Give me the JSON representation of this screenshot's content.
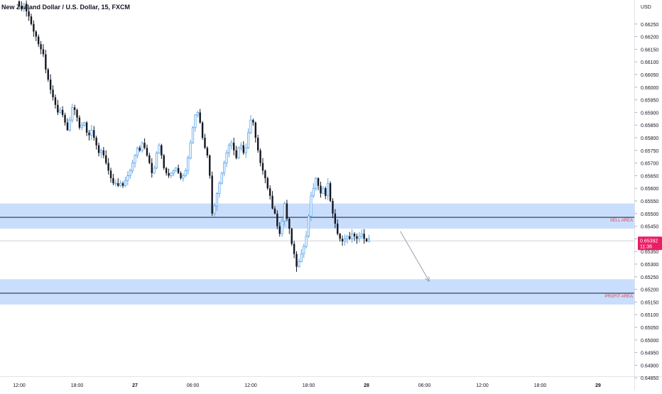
{
  "chart_data": {
    "type": "candlestick",
    "title": "New Zealand Dollar / U.S. Dollar, 15, FXCM",
    "currency": "USD",
    "ylim": [
      0.6482,
      0.6634
    ],
    "y_ticks": [
      0.6625,
      0.662,
      0.6615,
      0.661,
      0.6605,
      0.66,
      0.6595,
      0.659,
      0.6585,
      0.658,
      0.6575,
      0.657,
      0.6565,
      0.656,
      0.6555,
      0.655,
      0.6545,
      0.654,
      0.6535,
      0.653,
      0.6525,
      0.652,
      0.6515,
      0.651,
      0.6505,
      0.65,
      0.6495,
      0.649,
      0.6485
    ],
    "y_tick_labels": [
      "0.66250",
      "0.66200",
      "0.66150",
      "0.66100",
      "0.66050",
      "0.66000",
      "0.65950",
      "0.65900",
      "0.65850",
      "0.65800",
      "0.65750",
      "0.65700",
      "0.65650",
      "0.65600",
      "0.65550",
      "0.65500",
      "0.65450",
      "0.65400",
      "0.65350",
      "0.65300",
      "0.65250",
      "0.65200",
      "0.65150",
      "0.65100",
      "0.65050",
      "0.65000",
      "0.64950",
      "0.64900",
      "0.64850"
    ],
    "x_ticks": [
      "12:00",
      "18:00",
      "27",
      "06:00",
      "12:00",
      "18:00",
      "28",
      "06:00",
      "12:00",
      "18:00",
      "29"
    ],
    "x_tick_bold": [
      false,
      false,
      true,
      false,
      false,
      false,
      true,
      false,
      false,
      false,
      true
    ],
    "x_tick_index": [
      0,
      24,
      48,
      72,
      96,
      120,
      144,
      168,
      192,
      216,
      240
    ],
    "bar_interval_minutes": 15,
    "candles_close": [
      0.6632,
      0.6631,
      0.6633,
      0.663,
      0.6628,
      0.6625,
      0.6622,
      0.662,
      0.6617,
      0.6615,
      0.6613,
      0.6607,
      0.6603,
      0.6599,
      0.6596,
      0.6593,
      0.659,
      0.6591,
      0.6589,
      0.6586,
      0.6583,
      0.6587,
      0.6592,
      0.6591,
      0.6588,
      0.6584,
      0.6585,
      0.6586,
      0.6582,
      0.6581,
      0.6583,
      0.658,
      0.6577,
      0.6574,
      0.6575,
      0.6573,
      0.657,
      0.6567,
      0.6564,
      0.6562,
      0.6562,
      0.6561,
      0.6562,
      0.6561,
      0.6563,
      0.6565,
      0.6567,
      0.657,
      0.6573,
      0.6576,
      0.6575,
      0.6578,
      0.6576,
      0.6573,
      0.657,
      0.6566,
      0.6568,
      0.6574,
      0.6577,
      0.6573,
      0.6568,
      0.6566,
      0.6565,
      0.6566,
      0.6567,
      0.6568,
      0.6566,
      0.6564,
      0.6565,
      0.6567,
      0.6572,
      0.6578,
      0.6584,
      0.6589,
      0.659,
      0.6586,
      0.658,
      0.6576,
      0.6573,
      0.6565,
      0.655,
      0.6553,
      0.6558,
      0.6562,
      0.6566,
      0.657,
      0.6574,
      0.6577,
      0.6578,
      0.6575,
      0.6572,
      0.6576,
      0.6577,
      0.6574,
      0.6576,
      0.6582,
      0.6587,
      0.6586,
      0.658,
      0.6575,
      0.657,
      0.6567,
      0.6564,
      0.656,
      0.6557,
      0.6552,
      0.655,
      0.6545,
      0.6542,
      0.6547,
      0.6554,
      0.6548,
      0.6544,
      0.6538,
      0.6534,
      0.6529,
      0.6531,
      0.6534,
      0.6537,
      0.6541,
      0.6549,
      0.6557,
      0.656,
      0.6564,
      0.6561,
      0.6558,
      0.656,
      0.6557,
      0.6562,
      0.6555,
      0.655,
      0.6546,
      0.6542,
      0.654,
      0.6539,
      0.654,
      0.6541,
      0.654,
      0.6542,
      0.6541,
      0.654,
      0.6541,
      0.6542,
      0.654,
      0.6539,
      0.654
    ],
    "current_price": 0.65392,
    "current_price_label": "0.65392",
    "countdown_label": "11:36",
    "zones": [
      {
        "label": "SELL AREA",
        "low": 0.6544,
        "high": 0.6554,
        "line": 0.65485
      },
      {
        "label": "PROFIT AREA",
        "low": 0.6514,
        "high": 0.6524,
        "line": 0.65185
      }
    ],
    "projection_arrow": {
      "from": {
        "index": 158,
        "price": 0.6543
      },
      "to": {
        "index": 170,
        "price": 0.65232
      }
    },
    "colors": {
      "up_candle": "#5aa5ec",
      "down_candle": "#131722",
      "zone_fill": "#c9defc",
      "zone_line": "#1c2030",
      "zone_label": "#e0434f",
      "price_tag": "#e91e63",
      "arrow": "#9aa0a8",
      "axis_text": "#131722"
    }
  }
}
